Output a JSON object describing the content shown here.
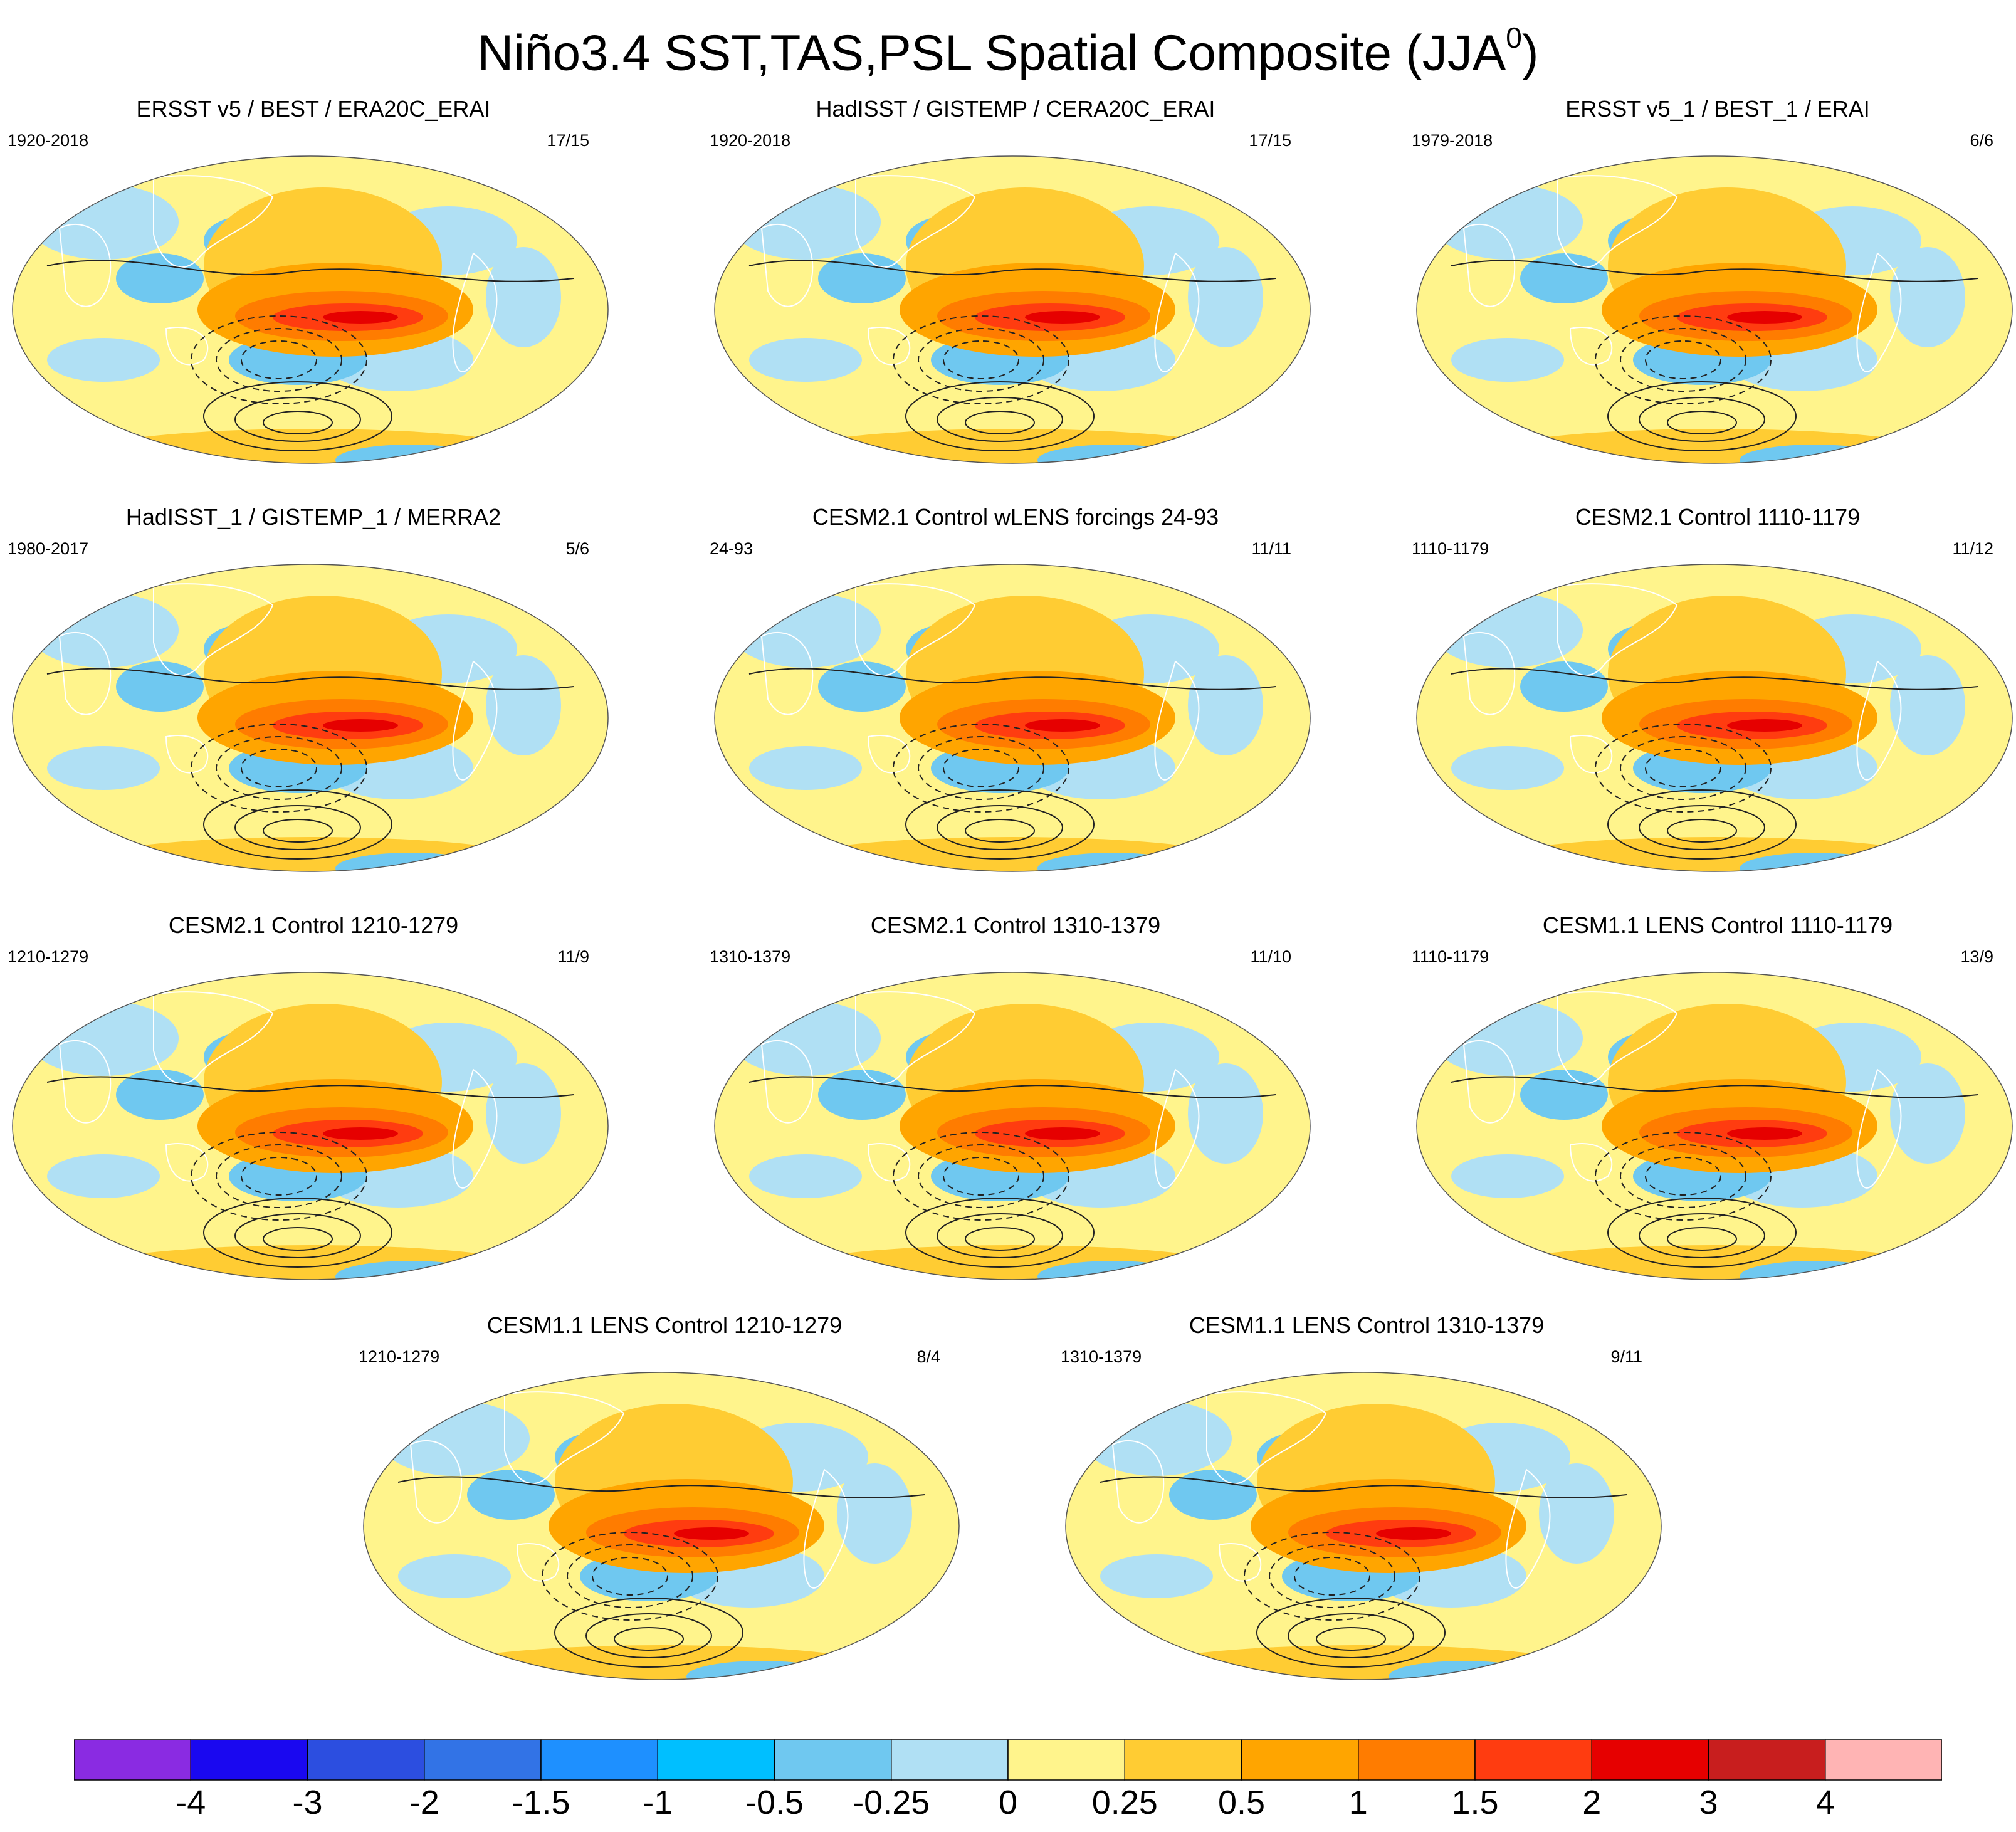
{
  "title": "Niño3.4 SST,TAS,PSL Spatial Composite (JJA",
  "title_superscript": "0",
  "title_close": ")",
  "panels": [
    {
      "title": "ERSST v5 / BEST / ERA20C_ERAI",
      "years": "1920-2018",
      "count": "17/15"
    },
    {
      "title": "HadISST / GISTEMP / CERA20C_ERAI",
      "years": "1920-2018",
      "count": "17/15"
    },
    {
      "title": "ERSST v5_1 / BEST_1 / ERAI",
      "years": "1979-2018",
      "count": "6/6"
    },
    {
      "title": "HadISST_1 / GISTEMP_1 / MERRA2",
      "years": "1980-2017",
      "count": "5/6"
    },
    {
      "title": "CESM2.1 Control wLENS forcings 24-93",
      "years": "24-93",
      "count": "11/11"
    },
    {
      "title": "CESM2.1 Control 1110-1179",
      "years": "1110-1179",
      "count": "11/12"
    },
    {
      "title": "CESM2.1 Control 1210-1279",
      "years": "1210-1279",
      "count": "11/9"
    },
    {
      "title": "CESM2.1 Control 1310-1379",
      "years": "1310-1379",
      "count": "11/10"
    },
    {
      "title": "CESM1.1 LENS Control 1110-1179",
      "years": "1110-1179",
      "count": "13/9"
    },
    {
      "title": "CESM1.1 LENS Control 1210-1279",
      "years": "1210-1279",
      "count": "8/4"
    },
    {
      "title": "CESM1.1 LENS Control 1310-1379",
      "years": "1310-1379",
      "count": "9/11"
    }
  ],
  "colorbar": {
    "colors": [
      "#8a2be2",
      "#1a08f0",
      "#2c4ee0",
      "#3273e6",
      "#1e90ff",
      "#00bfff",
      "#6fc8f0",
      "#b0e0f4",
      "#fff48c",
      "#ffcc33",
      "#ffa500",
      "#ff7c00",
      "#ff3c10",
      "#e60000",
      "#c81e1e",
      "#ffb4b4"
    ],
    "labels": [
      "-4",
      "-3",
      "-2",
      "-1.5",
      "-1",
      "-0.5",
      "-0.25",
      "0",
      "0.25",
      "0.5",
      "1",
      "1.5",
      "2",
      "3",
      "4"
    ]
  },
  "chart_data": {
    "type": "heatmap",
    "title": "Niño3.4 SST,TAS,PSL Spatial Composite (JJA0)",
    "variables": [
      "SST",
      "TAS",
      "PSL"
    ],
    "season": "JJA0",
    "colorbar_levels": [
      -4,
      -3,
      -2,
      -1.5,
      -1,
      -0.5,
      -0.25,
      0,
      0.25,
      0.5,
      1,
      1.5,
      2,
      3,
      4
    ],
    "n_panels": 11,
    "contours": "PSL (solid positive, dashed negative)"
  }
}
